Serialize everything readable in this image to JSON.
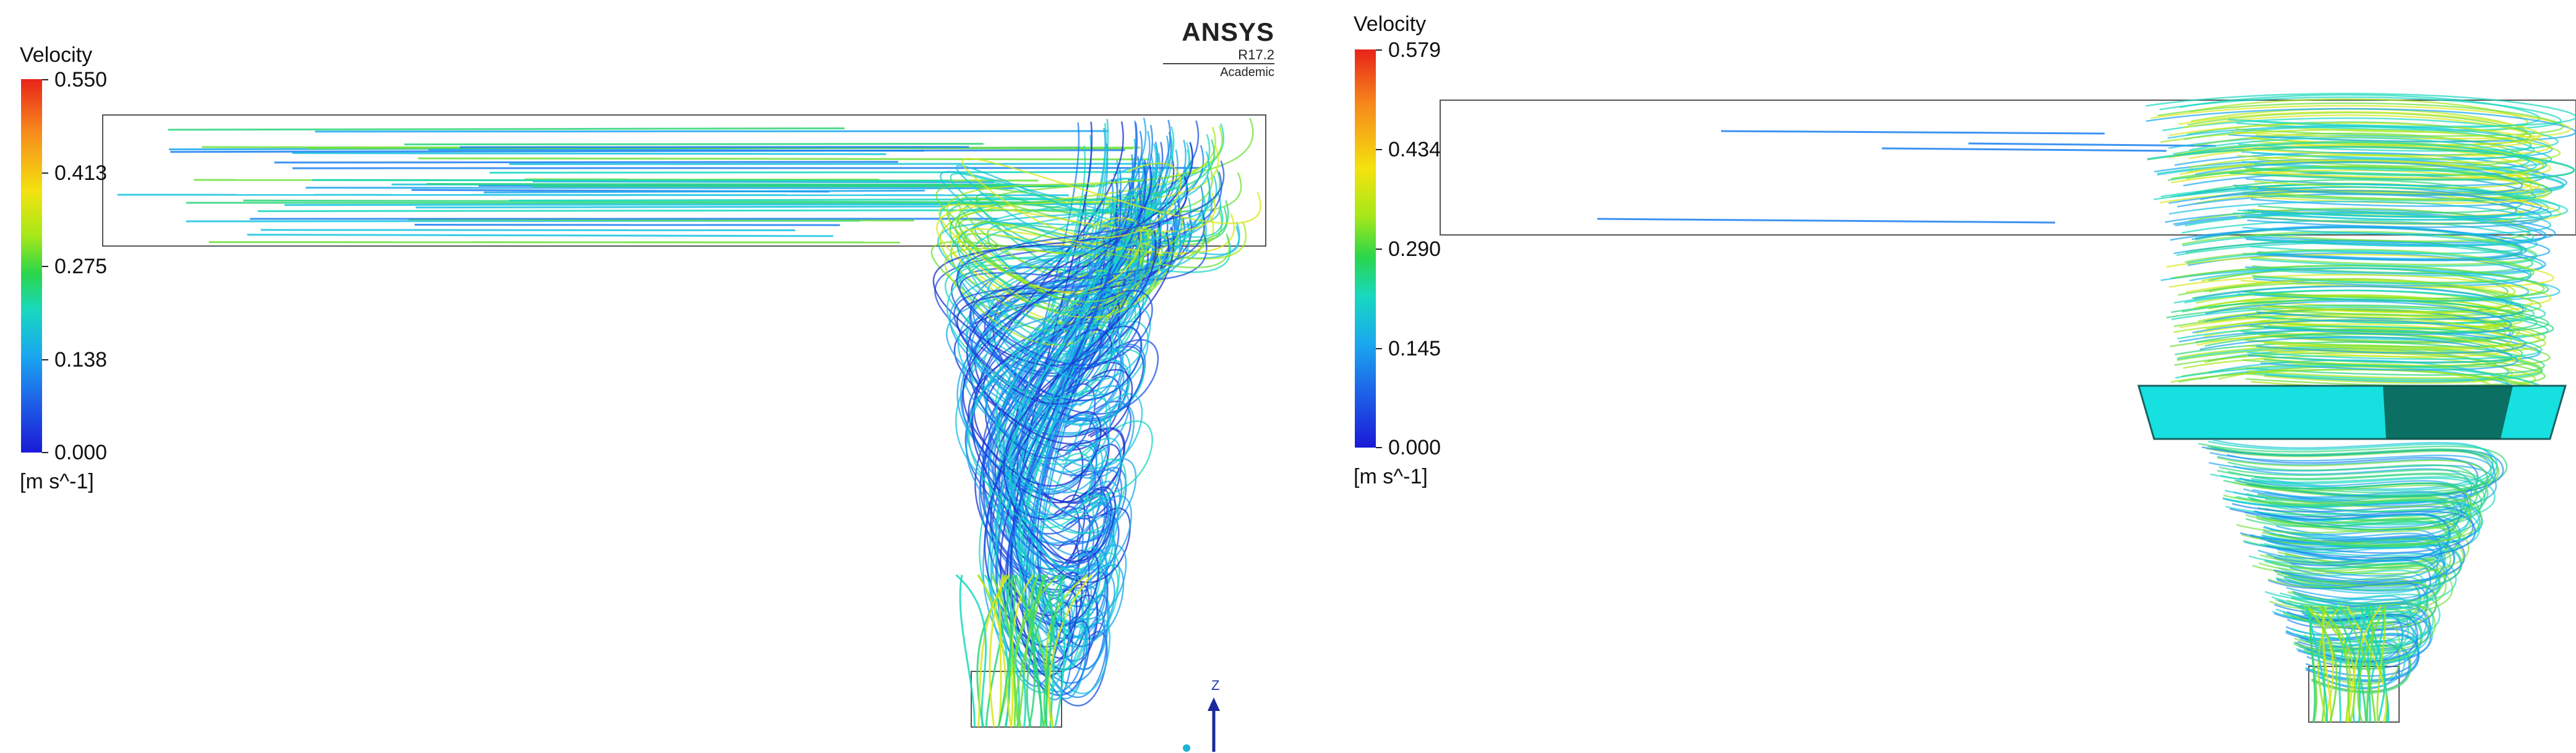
{
  "left_panel": {
    "legend": {
      "title": "Velocity",
      "ticks": [
        "0.550",
        "0.413",
        "0.275",
        "0.138",
        "0.000"
      ],
      "units": "[m s^-1]"
    },
    "brand": {
      "name": "ANSYS",
      "version": "R17.2",
      "edition": "Academic"
    },
    "axis": {
      "label": "Z"
    }
  },
  "right_panel": {
    "legend": {
      "title": "Velocity",
      "ticks": [
        "0.579",
        "0.434",
        "0.290",
        "0.145",
        "0.000"
      ],
      "units": "[m s^-1]"
    }
  },
  "colors": {
    "low": "#1a1ad6",
    "mid_low": "#1aa7ef",
    "mid": "#2bd64a",
    "mid_high": "#f4e20f",
    "high": "#e8231a"
  }
}
